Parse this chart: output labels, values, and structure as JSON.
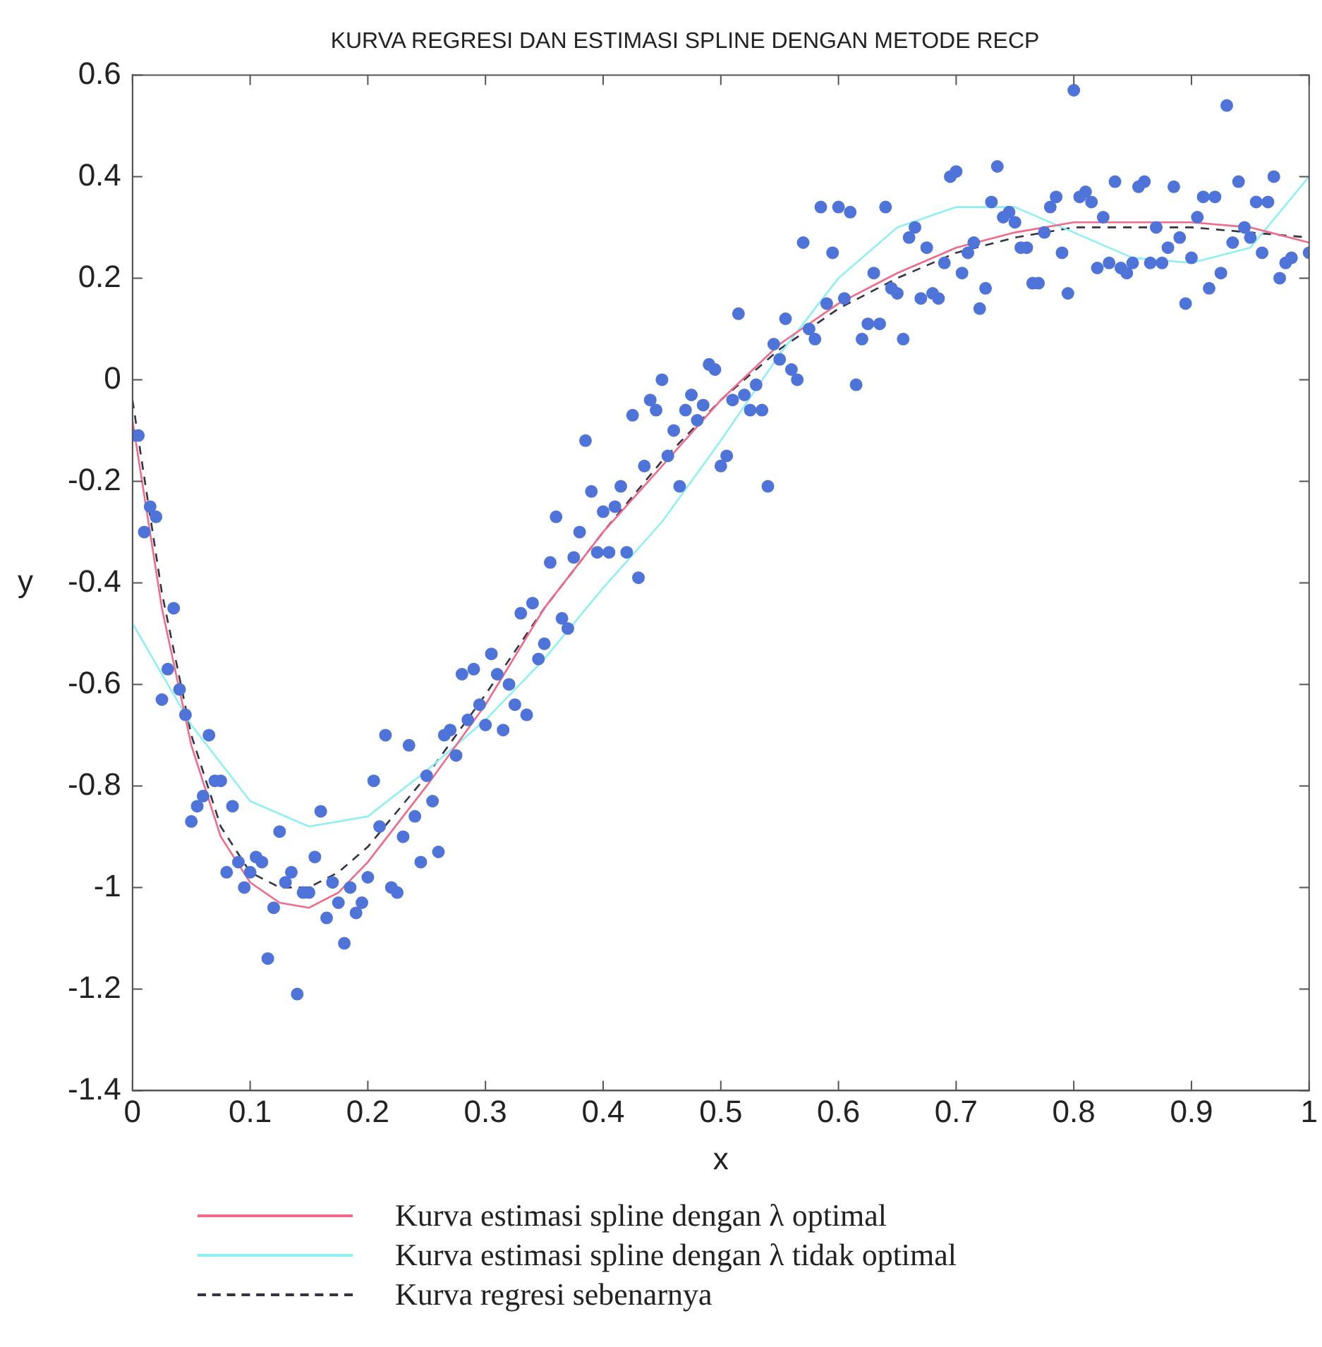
{
  "chart_data": {
    "type": "scatter",
    "title": "KURVA REGRESI DAN ESTIMASI SPLINE DENGAN METODE RECP",
    "xlabel": "x",
    "ylabel": "y",
    "xlim": [
      0,
      1
    ],
    "ylim": [
      -1.4,
      0.6
    ],
    "xticks": [
      0,
      0.1,
      0.2,
      0.3,
      0.4,
      0.5,
      0.6,
      0.7,
      0.8,
      0.9,
      1
    ],
    "yticks": [
      -1.4,
      -1.2,
      -1,
      -0.8,
      -0.6,
      -0.4,
      -0.2,
      0,
      0.2,
      0.4,
      0.6
    ],
    "grid": false,
    "legend": "bottom",
    "marker": "circle",
    "series": [
      {
        "color": "#4f74d9",
        "x": [
          0,
          0.005,
          0.01,
          0.015,
          0.02,
          0.025,
          0.03,
          0.035,
          0.04,
          0.045,
          0.05,
          0.055,
          0.06,
          0.065,
          0.07,
          0.075,
          0.08,
          0.085,
          0.09,
          0.095,
          0.1,
          0.105,
          0.11,
          0.115,
          0.12,
          0.125,
          0.13,
          0.135,
          0.14,
          0.145,
          0.15,
          0.155,
          0.16,
          0.165,
          0.17,
          0.175,
          0.18,
          0.185,
          0.19,
          0.195,
          0.2,
          0.205,
          0.21,
          0.215,
          0.22,
          0.225,
          0.23,
          0.235,
          0.24,
          0.245,
          0.25,
          0.255,
          0.26,
          0.265,
          0.27,
          0.275,
          0.28,
          0.285,
          0.29,
          0.295,
          0.3,
          0.305,
          0.31,
          0.315,
          0.32,
          0.325,
          0.33,
          0.335,
          0.34,
          0.345,
          0.35,
          0.355,
          0.36,
          0.365,
          0.37,
          0.375,
          0.38,
          0.385,
          0.39,
          0.395,
          0.4,
          0.405,
          0.41,
          0.415,
          0.42,
          0.425,
          0.43,
          0.435,
          0.44,
          0.445,
          0.45,
          0.455,
          0.46,
          0.465,
          0.47,
          0.475,
          0.48,
          0.485,
          0.49,
          0.495,
          0.5,
          0.505,
          0.51,
          0.515,
          0.52,
          0.525,
          0.53,
          0.535,
          0.54,
          0.545,
          0.55,
          0.555,
          0.56,
          0.565,
          0.57,
          0.575,
          0.58,
          0.585,
          0.59,
          0.595,
          0.6,
          0.605,
          0.61,
          0.615,
          0.62,
          0.625,
          0.63,
          0.635,
          0.64,
          0.645,
          0.65,
          0.655,
          0.66,
          0.665,
          0.67,
          0.675,
          0.68,
          0.685,
          0.69,
          0.695,
          0.7,
          0.705,
          0.71,
          0.715,
          0.72,
          0.725,
          0.73,
          0.735,
          0.74,
          0.745,
          0.75,
          0.755,
          0.76,
          0.765,
          0.77,
          0.775,
          0.78,
          0.785,
          0.79,
          0.795,
          0.8,
          0.805,
          0.81,
          0.815,
          0.82,
          0.825,
          0.83,
          0.835,
          0.84,
          0.845,
          0.85,
          0.855,
          0.86,
          0.865,
          0.87,
          0.875,
          0.88,
          0.885,
          0.89,
          0.895,
          0.9,
          0.905,
          0.91,
          0.915,
          0.92,
          0.925,
          0.93,
          0.935,
          0.94,
          0.945,
          0.95,
          0.955,
          0.96,
          0.965,
          0.97,
          0.975,
          0.98,
          0.985,
          1
        ],
        "values": [
          -0.11,
          -0.11,
          -0.3,
          -0.25,
          -0.27,
          -0.63,
          -0.57,
          -0.45,
          -0.61,
          -0.66,
          -0.87,
          -0.84,
          -0.82,
          -0.7,
          -0.79,
          -0.79,
          -0.97,
          -0.84,
          -0.95,
          -1,
          -0.97,
          -0.94,
          -0.95,
          -1.14,
          -1.04,
          -0.89,
          -0.99,
          -0.97,
          -1.21,
          -1.01,
          -1.01,
          -0.94,
          -0.85,
          -1.06,
          -0.99,
          -1.03,
          -1.11,
          -1,
          -1.05,
          -1.03,
          -0.98,
          -0.79,
          -0.88,
          -0.7,
          -1,
          -1.01,
          -0.9,
          -0.72,
          -0.86,
          -0.95,
          -0.78,
          -0.83,
          -0.93,
          -0.7,
          -0.69,
          -0.74,
          -0.58,
          -0.67,
          -0.57,
          -0.64,
          -0.68,
          -0.54,
          -0.58,
          -0.69,
          -0.6,
          -0.64,
          -0.46,
          -0.66,
          -0.44,
          -0.55,
          -0.52,
          -0.36,
          -0.27,
          -0.47,
          -0.49,
          -0.35,
          -0.3,
          -0.12,
          -0.22,
          -0.34,
          -0.26,
          -0.34,
          -0.25,
          -0.21,
          -0.34,
          -0.07,
          -0.39,
          -0.17,
          -0.04,
          -0.06,
          0,
          -0.15,
          -0.1,
          -0.21,
          -0.06,
          -0.03,
          -0.08,
          -0.05,
          0.03,
          0.02,
          -0.17,
          -0.15,
          -0.04,
          0.13,
          -0.03,
          -0.06,
          -0.01,
          -0.06,
          -0.21,
          0.07,
          0.04,
          0.12,
          0.02,
          0,
          0.27,
          0.1,
          0.08,
          0.34,
          0.15,
          0.25,
          0.34,
          0.16,
          0.33,
          -0.01,
          0.08,
          0.11,
          0.21,
          0.11,
          0.34,
          0.18,
          0.17,
          0.08,
          0.28,
          0.3,
          0.16,
          0.26,
          0.17,
          0.16,
          0.23,
          0.4,
          0.41,
          0.21,
          0.25,
          0.27,
          0.14,
          0.18,
          0.35,
          0.42,
          0.32,
          0.33,
          0.31,
          0.26,
          0.26,
          0.19,
          0.19,
          0.29,
          0.34,
          0.36,
          0.25,
          0.17,
          0.57,
          0.36,
          0.37,
          0.35,
          0.22,
          0.32,
          0.23,
          0.39,
          0.22,
          0.21,
          0.23,
          0.38,
          0.39,
          0.23,
          0.3,
          0.23,
          0.26,
          0.38,
          0.28,
          0.15,
          0.24,
          0.32,
          0.36,
          0.18,
          0.36,
          0.21,
          0.54,
          0.27,
          0.39,
          0.3,
          0.28,
          0.35,
          0.25,
          0.35,
          0.4,
          0.2,
          0.23,
          0.24,
          0.25
        ]
      },
      {
        "type": "line",
        "name": "Kurva estimasi spline dengan λ optimal",
        "color": "#f06a8a",
        "line_style": "solid",
        "marker": "none",
        "x": [
          0,
          0.025,
          0.05,
          0.075,
          0.1,
          0.125,
          0.15,
          0.175,
          0.2,
          0.25,
          0.3,
          0.35,
          0.4,
          0.45,
          0.5,
          0.55,
          0.6,
          0.65,
          0.7,
          0.75,
          0.8,
          0.85,
          0.9,
          0.95,
          1
        ],
        "values": [
          -0.08,
          -0.45,
          -0.72,
          -0.9,
          -0.99,
          -1.03,
          -1.04,
          -1.01,
          -0.95,
          -0.8,
          -0.64,
          -0.45,
          -0.3,
          -0.17,
          -0.04,
          0.07,
          0.15,
          0.21,
          0.26,
          0.29,
          0.31,
          0.31,
          0.31,
          0.3,
          0.27
        ]
      },
      {
        "type": "line",
        "name": "Kurva estimasi spline dengan λ tidak optimal",
        "color": "#8ff0f4",
        "line_style": "solid",
        "marker": "none",
        "x": [
          0,
          0.05,
          0.1,
          0.15,
          0.2,
          0.25,
          0.3,
          0.35,
          0.4,
          0.45,
          0.5,
          0.55,
          0.6,
          0.65,
          0.7,
          0.75,
          0.8,
          0.85,
          0.9,
          0.95,
          1
        ],
        "values": [
          -0.48,
          -0.68,
          -0.83,
          -0.88,
          -0.86,
          -0.77,
          -0.67,
          -0.55,
          -0.41,
          -0.28,
          -0.12,
          0.05,
          0.2,
          0.3,
          0.34,
          0.34,
          0.29,
          0.24,
          0.23,
          0.26,
          0.4
        ]
      },
      {
        "type": "line",
        "name": "Kurva regresi sebenarnya",
        "color": "#333344",
        "line_style": "dashed",
        "marker": "none",
        "x": [
          0,
          0.025,
          0.05,
          0.075,
          0.1,
          0.125,
          0.15,
          0.175,
          0.2,
          0.25,
          0.3,
          0.35,
          0.4,
          0.45,
          0.5,
          0.55,
          0.6,
          0.65,
          0.7,
          0.75,
          0.8,
          0.85,
          0.9,
          0.95,
          1
        ],
        "values": [
          -0.04,
          -0.42,
          -0.7,
          -0.88,
          -0.97,
          -1,
          -1,
          -0.97,
          -0.92,
          -0.78,
          -0.62,
          -0.45,
          -0.3,
          -0.16,
          -0.04,
          0.06,
          0.14,
          0.2,
          0.25,
          0.28,
          0.3,
          0.3,
          0.3,
          0.29,
          0.28
        ]
      }
    ]
  }
}
